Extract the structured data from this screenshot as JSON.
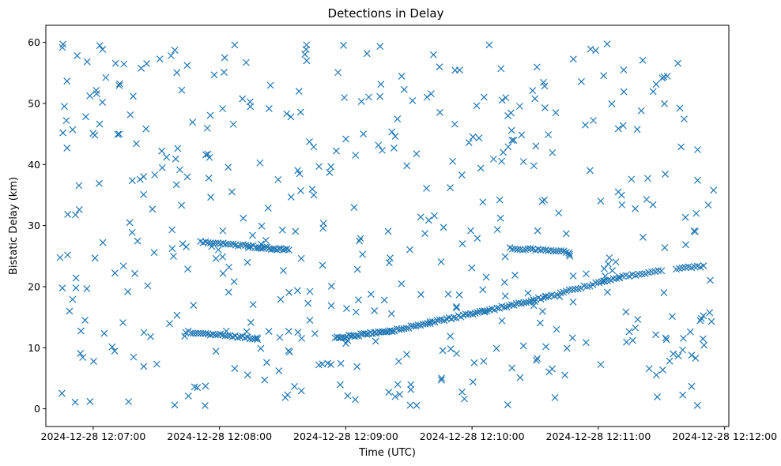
{
  "chart_data": {
    "type": "scatter",
    "title": "Detections in Delay",
    "xlabel": "Time (UTC)",
    "ylabel": "Bistatic Delay (km)",
    "marker": "x",
    "color": "#1f77b4",
    "x_unit": "seconds after 2024-12-28 12:07:00",
    "xlim": [
      -22.5,
      302
    ],
    "ylim": [
      -2.9,
      62.8
    ],
    "x_ticks": [
      {
        "value": 0,
        "label": "2024-12-28 12:07:00"
      },
      {
        "value": 60,
        "label": "2024-12-28 12:08:00"
      },
      {
        "value": 120,
        "label": "2024-12-28 12:09:00"
      },
      {
        "value": 180,
        "label": "2024-12-28 12:10:00"
      },
      {
        "value": 240,
        "label": "2024-12-28 12:11:00"
      },
      {
        "value": 300,
        "label": "2024-12-28 12:12:00"
      }
    ],
    "y_ticks": [
      {
        "value": 0,
        "label": "0"
      },
      {
        "value": 10,
        "label": "10"
      },
      {
        "value": 20,
        "label": "20"
      },
      {
        "value": 30,
        "label": "30"
      },
      {
        "value": 40,
        "label": "40"
      },
      {
        "value": 50,
        "label": "50"
      },
      {
        "value": 60,
        "label": "60"
      }
    ],
    "x_range_data": [
      -17,
      295
    ],
    "tracks": [
      {
        "x_start": 51,
        "x_end": 76,
        "y_start": 27.3,
        "y_end": 26.6,
        "count": 22
      },
      {
        "x_start": 77,
        "x_end": 93,
        "y_start": 26.5,
        "y_end": 26.0,
        "count": 18
      },
      {
        "x_start": 198,
        "x_end": 226,
        "y_start": 26.3,
        "y_end": 25.7,
        "count": 24
      },
      {
        "x_start": 44,
        "x_end": 78,
        "y_start": 12.6,
        "y_end": 11.5,
        "count": 30
      },
      {
        "x_start": 115,
        "x_end": 142,
        "y_start": 11.6,
        "y_end": 12.8,
        "count": 30
      },
      {
        "x_start": 142,
        "x_end": 186,
        "y_start": 12.8,
        "y_end": 16.0,
        "count": 40
      },
      {
        "x_start": 186,
        "x_end": 215,
        "y_start": 16.0,
        "y_end": 18.3,
        "count": 26
      },
      {
        "x_start": 215,
        "x_end": 250,
        "y_start": 18.3,
        "y_end": 21.5,
        "count": 26
      },
      {
        "x_start": 250,
        "x_end": 270,
        "y_start": 21.5,
        "y_end": 22.6,
        "count": 14
      },
      {
        "x_start": 277,
        "x_end": 290,
        "y_start": 23.0,
        "y_end": 23.3,
        "count": 10
      }
    ],
    "scatter_noise": {
      "count": 480,
      "x_range": [
        -17,
        295
      ],
      "y_range": [
        0.5,
        59.8
      ],
      "seed": 7
    }
  }
}
